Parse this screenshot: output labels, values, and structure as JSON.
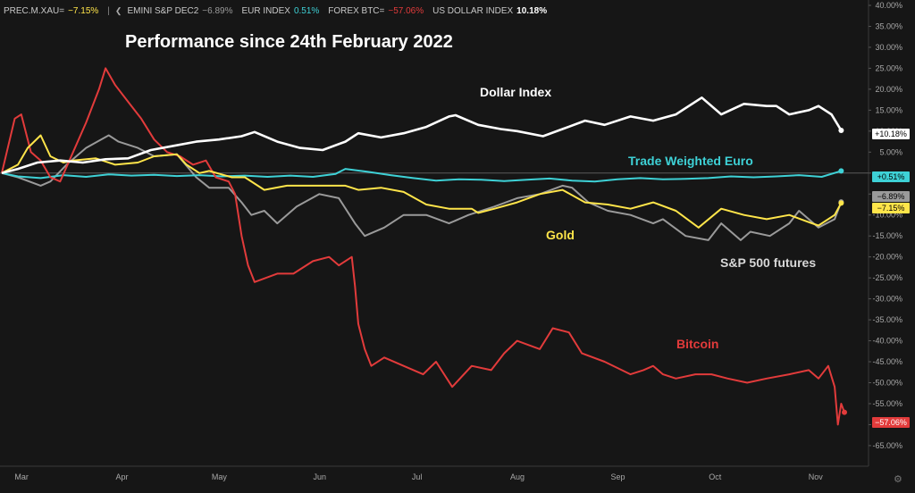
{
  "legend": [
    {
      "name": "PREC.M.XAU=",
      "value": "−7.15%",
      "color": "#ffe54a"
    },
    {
      "name": "EMINI S&P DEC2",
      "value": "−6.89%",
      "color": "#9a9a9a"
    },
    {
      "name": "EUR INDEX",
      "value": "0.51%",
      "color": "#3ed1d6"
    },
    {
      "name": "FOREX BTC=",
      "value": "−57.06%",
      "color": "#e23b3b"
    },
    {
      "name": "US DOLLAR INDEX",
      "value": "10.18%",
      "color": "#ffffff"
    }
  ],
  "chart_data": {
    "type": "line",
    "title": "Performance since 24th February 2022",
    "xlabel": "",
    "ylabel": "",
    "x_tick_labels": [
      "Mar",
      "Apr",
      "May",
      "Jun",
      "Jul",
      "Aug",
      "Sep",
      "Oct",
      "Nov"
    ],
    "y_tick_labels": [
      "40.00%",
      "35.00%",
      "30.00%",
      "25.00%",
      "20.00%",
      "15.00%",
      "10.00%",
      "5.00%",
      "",
      "-5.00%",
      "-10.00%",
      "-15.00%",
      "-20.00%",
      "-25.00%",
      "-30.00%",
      "-35.00%",
      "-40.00%",
      "-45.00%",
      "-50.00%",
      "-55.00%",
      "-60.00%",
      "-65.00%"
    ],
    "ylim": [
      -68,
      40
    ],
    "x_range": [
      "2022-02-24",
      "2022-11-11"
    ],
    "grid": false,
    "series": [
      {
        "name": "Dollar Index",
        "color": "#ffffff",
        "last_label": "+10.18%",
        "points": [
          [
            "2022-02-24",
            0
          ],
          [
            "2022-03-01",
            1
          ],
          [
            "2022-03-07",
            2.5
          ],
          [
            "2022-03-14",
            3
          ],
          [
            "2022-03-21",
            2.5
          ],
          [
            "2022-03-28",
            3.3
          ],
          [
            "2022-04-04",
            3.5
          ],
          [
            "2022-04-11",
            5.5
          ],
          [
            "2022-04-18",
            6.5
          ],
          [
            "2022-04-25",
            7.5
          ],
          [
            "2022-05-02",
            8
          ],
          [
            "2022-05-09",
            8.8
          ],
          [
            "2022-05-13",
            9.8
          ],
          [
            "2022-05-20",
            7.5
          ],
          [
            "2022-05-27",
            6
          ],
          [
            "2022-06-03",
            5.5
          ],
          [
            "2022-06-10",
            7.5
          ],
          [
            "2022-06-14",
            9.5
          ],
          [
            "2022-06-21",
            8.5
          ],
          [
            "2022-06-28",
            9.5
          ],
          [
            "2022-07-05",
            11
          ],
          [
            "2022-07-12",
            13.5
          ],
          [
            "2022-07-14",
            13.8
          ],
          [
            "2022-07-21",
            11.5
          ],
          [
            "2022-07-28",
            10.5
          ],
          [
            "2022-08-02",
            10
          ],
          [
            "2022-08-10",
            8.8
          ],
          [
            "2022-08-16",
            10.5
          ],
          [
            "2022-08-23",
            12.5
          ],
          [
            "2022-08-29",
            11.5
          ],
          [
            "2022-09-06",
            13.5
          ],
          [
            "2022-09-13",
            12.5
          ],
          [
            "2022-09-20",
            14
          ],
          [
            "2022-09-28",
            18
          ],
          [
            "2022-10-04",
            14
          ],
          [
            "2022-10-11",
            16.5
          ],
          [
            "2022-10-18",
            16
          ],
          [
            "2022-10-21",
            16
          ],
          [
            "2022-10-25",
            14
          ],
          [
            "2022-10-31",
            15
          ],
          [
            "2022-11-03",
            16
          ],
          [
            "2022-11-07",
            14
          ],
          [
            "2022-11-10",
            10.18
          ]
        ]
      },
      {
        "name": "Trade Weighted Euro",
        "color": "#3ed1d6",
        "last_label": "+0.51%",
        "points": [
          [
            "2022-02-24",
            0
          ],
          [
            "2022-03-01",
            -0.8
          ],
          [
            "2022-03-08",
            -1.2
          ],
          [
            "2022-03-15",
            -0.5
          ],
          [
            "2022-03-22",
            -0.9
          ],
          [
            "2022-03-29",
            -0.3
          ],
          [
            "2022-04-05",
            -0.6
          ],
          [
            "2022-04-12",
            -0.4
          ],
          [
            "2022-04-19",
            -0.7
          ],
          [
            "2022-04-26",
            -0.5
          ],
          [
            "2022-05-03",
            -0.8
          ],
          [
            "2022-05-10",
            -0.6
          ],
          [
            "2022-05-17",
            -0.9
          ],
          [
            "2022-05-24",
            -0.6
          ],
          [
            "2022-05-31",
            -0.9
          ],
          [
            "2022-06-07",
            -0.2
          ],
          [
            "2022-06-10",
            1
          ],
          [
            "2022-06-17",
            0.3
          ],
          [
            "2022-06-24",
            -0.5
          ],
          [
            "2022-07-01",
            -1.2
          ],
          [
            "2022-07-08",
            -1.8
          ],
          [
            "2022-07-15",
            -1.5
          ],
          [
            "2022-07-22",
            -1.6
          ],
          [
            "2022-07-29",
            -1.9
          ],
          [
            "2022-08-05",
            -1.6
          ],
          [
            "2022-08-12",
            -1.3
          ],
          [
            "2022-08-19",
            -1.8
          ],
          [
            "2022-08-26",
            -2
          ],
          [
            "2022-09-02",
            -1.5
          ],
          [
            "2022-09-09",
            -1.2
          ],
          [
            "2022-09-16",
            -1.5
          ],
          [
            "2022-09-23",
            -1.4
          ],
          [
            "2022-09-30",
            -1.2
          ],
          [
            "2022-10-07",
            -0.8
          ],
          [
            "2022-10-14",
            -1
          ],
          [
            "2022-10-21",
            -0.8
          ],
          [
            "2022-10-28",
            -0.5
          ],
          [
            "2022-11-04",
            -0.9
          ],
          [
            "2022-11-10",
            0.51
          ]
        ]
      },
      {
        "name": "Gold",
        "color": "#ffe54a",
        "last_label": "−7.15%",
        "points": [
          [
            "2022-02-24",
            0
          ],
          [
            "2022-03-01",
            2
          ],
          [
            "2022-03-04",
            6
          ],
          [
            "2022-03-08",
            9
          ],
          [
            "2022-03-11",
            4
          ],
          [
            "2022-03-15",
            2.5
          ],
          [
            "2022-03-18",
            3
          ],
          [
            "2022-03-25",
            3.5
          ],
          [
            "2022-03-31",
            2
          ],
          [
            "2022-04-07",
            2.5
          ],
          [
            "2022-04-12",
            4
          ],
          [
            "2022-04-19",
            4.5
          ],
          [
            "2022-04-22",
            2
          ],
          [
            "2022-04-26",
            0
          ],
          [
            "2022-04-29",
            0.5
          ],
          [
            "2022-05-06",
            -1
          ],
          [
            "2022-05-10",
            -1
          ],
          [
            "2022-05-16",
            -4
          ],
          [
            "2022-05-23",
            -3
          ],
          [
            "2022-05-27",
            -3
          ],
          [
            "2022-06-03",
            -3
          ],
          [
            "2022-06-10",
            -3
          ],
          [
            "2022-06-14",
            -4
          ],
          [
            "2022-06-21",
            -3.5
          ],
          [
            "2022-06-28",
            -4.5
          ],
          [
            "2022-07-05",
            -7.5
          ],
          [
            "2022-07-12",
            -8.5
          ],
          [
            "2022-07-19",
            -8.5
          ],
          [
            "2022-07-21",
            -9.5
          ],
          [
            "2022-07-26",
            -8.5
          ],
          [
            "2022-08-02",
            -7
          ],
          [
            "2022-08-09",
            -5
          ],
          [
            "2022-08-16",
            -4
          ],
          [
            "2022-08-23",
            -7
          ],
          [
            "2022-08-30",
            -7.5
          ],
          [
            "2022-09-06",
            -8.5
          ],
          [
            "2022-09-13",
            -7
          ],
          [
            "2022-09-20",
            -9
          ],
          [
            "2022-09-27",
            -13
          ],
          [
            "2022-10-04",
            -8.5
          ],
          [
            "2022-10-11",
            -10
          ],
          [
            "2022-10-18",
            -11
          ],
          [
            "2022-10-25",
            -10
          ],
          [
            "2022-11-01",
            -12
          ],
          [
            "2022-11-03",
            -12.5
          ],
          [
            "2022-11-08",
            -10
          ],
          [
            "2022-11-10",
            -7.15
          ]
        ]
      },
      {
        "name": "S&P 500 futures",
        "color": "#9a9a9a",
        "last_label": "−6.89%",
        "points": [
          [
            "2022-02-24",
            0
          ],
          [
            "2022-03-01",
            -1
          ],
          [
            "2022-03-08",
            -3
          ],
          [
            "2022-03-11",
            -2
          ],
          [
            "2022-03-16",
            2
          ],
          [
            "2022-03-22",
            6
          ],
          [
            "2022-03-29",
            9
          ],
          [
            "2022-04-01",
            7.5
          ],
          [
            "2022-04-07",
            6
          ],
          [
            "2022-04-12",
            4
          ],
          [
            "2022-04-19",
            4.5
          ],
          [
            "2022-04-25",
            -1
          ],
          [
            "2022-04-29",
            -3.5
          ],
          [
            "2022-05-05",
            -3.5
          ],
          [
            "2022-05-09",
            -7
          ],
          [
            "2022-05-12",
            -10
          ],
          [
            "2022-05-16",
            -9
          ],
          [
            "2022-05-20",
            -12
          ],
          [
            "2022-05-26",
            -8
          ],
          [
            "2022-06-02",
            -5
          ],
          [
            "2022-06-08",
            -6
          ],
          [
            "2022-06-13",
            -12
          ],
          [
            "2022-06-16",
            -15
          ],
          [
            "2022-06-22",
            -13
          ],
          [
            "2022-06-28",
            -10
          ],
          [
            "2022-07-05",
            -10
          ],
          [
            "2022-07-12",
            -12
          ],
          [
            "2022-07-18",
            -10
          ],
          [
            "2022-07-26",
            -8
          ],
          [
            "2022-08-02",
            -6
          ],
          [
            "2022-08-09",
            -5
          ],
          [
            "2022-08-16",
            -3
          ],
          [
            "2022-08-19",
            -3.5
          ],
          [
            "2022-08-24",
            -7
          ],
          [
            "2022-08-30",
            -9
          ],
          [
            "2022-09-06",
            -10
          ],
          [
            "2022-09-13",
            -12
          ],
          [
            "2022-09-16",
            -11
          ],
          [
            "2022-09-23",
            -15
          ],
          [
            "2022-09-30",
            -16
          ],
          [
            "2022-10-04",
            -12
          ],
          [
            "2022-10-10",
            -16
          ],
          [
            "2022-10-13",
            -14
          ],
          [
            "2022-10-19",
            -15
          ],
          [
            "2022-10-25",
            -12
          ],
          [
            "2022-10-28",
            -9
          ],
          [
            "2022-11-03",
            -13
          ],
          [
            "2022-11-08",
            -11
          ],
          [
            "2022-11-10",
            -6.89
          ]
        ]
      },
      {
        "name": "Bitcoin",
        "color": "#e23b3b",
        "last_label": "−57.06%",
        "points": [
          [
            "2022-02-24",
            0
          ],
          [
            "2022-02-28",
            13
          ],
          [
            "2022-03-02",
            14
          ],
          [
            "2022-03-05",
            5
          ],
          [
            "2022-03-08",
            3
          ],
          [
            "2022-03-11",
            -1
          ],
          [
            "2022-03-14",
            -2
          ],
          [
            "2022-03-18",
            5
          ],
          [
            "2022-03-22",
            12
          ],
          [
            "2022-03-26",
            20
          ],
          [
            "2022-03-28",
            25
          ],
          [
            "2022-03-31",
            21
          ],
          [
            "2022-04-04",
            17
          ],
          [
            "2022-04-08",
            13
          ],
          [
            "2022-04-12",
            8
          ],
          [
            "2022-04-16",
            5
          ],
          [
            "2022-04-20",
            4
          ],
          [
            "2022-04-24",
            2
          ],
          [
            "2022-04-28",
            3
          ],
          [
            "2022-05-01",
            -1
          ],
          [
            "2022-05-05",
            -2
          ],
          [
            "2022-05-07",
            -5
          ],
          [
            "2022-05-09",
            -15
          ],
          [
            "2022-05-11",
            -22
          ],
          [
            "2022-05-13",
            -26
          ],
          [
            "2022-05-20",
            -24
          ],
          [
            "2022-05-25",
            -24
          ],
          [
            "2022-05-31",
            -21
          ],
          [
            "2022-06-05",
            -20
          ],
          [
            "2022-06-08",
            -22
          ],
          [
            "2022-06-12",
            -20
          ],
          [
            "2022-06-13",
            -27
          ],
          [
            "2022-06-14",
            -36
          ],
          [
            "2022-06-16",
            -42
          ],
          [
            "2022-06-18",
            -46
          ],
          [
            "2022-06-22",
            -44
          ],
          [
            "2022-06-28",
            -46
          ],
          [
            "2022-07-04",
            -48
          ],
          [
            "2022-07-08",
            -45
          ],
          [
            "2022-07-13",
            -51
          ],
          [
            "2022-07-19",
            -46
          ],
          [
            "2022-07-25",
            -47
          ],
          [
            "2022-07-29",
            -43
          ],
          [
            "2022-08-02",
            -40
          ],
          [
            "2022-08-09",
            -42
          ],
          [
            "2022-08-13",
            -37
          ],
          [
            "2022-08-18",
            -38
          ],
          [
            "2022-08-22",
            -43
          ],
          [
            "2022-08-29",
            -45
          ],
          [
            "2022-09-06",
            -48
          ],
          [
            "2022-09-10",
            -47
          ],
          [
            "2022-09-13",
            -46
          ],
          [
            "2022-09-16",
            -48
          ],
          [
            "2022-09-20",
            -49
          ],
          [
            "2022-09-26",
            -48
          ],
          [
            "2022-10-01",
            -48
          ],
          [
            "2022-10-06",
            -49
          ],
          [
            "2022-10-12",
            -50
          ],
          [
            "2022-10-18",
            -49
          ],
          [
            "2022-10-25",
            -48
          ],
          [
            "2022-10-31",
            -47
          ],
          [
            "2022-11-03",
            -49
          ],
          [
            "2022-11-06",
            -46
          ],
          [
            "2022-11-08",
            -51
          ],
          [
            "2022-11-09",
            -60
          ],
          [
            "2022-11-10",
            -55
          ],
          [
            "2022-11-11",
            -57.06
          ]
        ]
      }
    ],
    "annotations": [
      {
        "text": "Dollar Index",
        "color": "#ffffff"
      },
      {
        "text": "Trade Weighted Euro",
        "color": "#3ed1d6"
      },
      {
        "text": "Gold",
        "color": "#ffe54a"
      },
      {
        "text": "S&P 500 futures",
        "color": "#d8d8d8"
      },
      {
        "text": "Bitcoin",
        "color": "#e23b3b"
      }
    ]
  }
}
